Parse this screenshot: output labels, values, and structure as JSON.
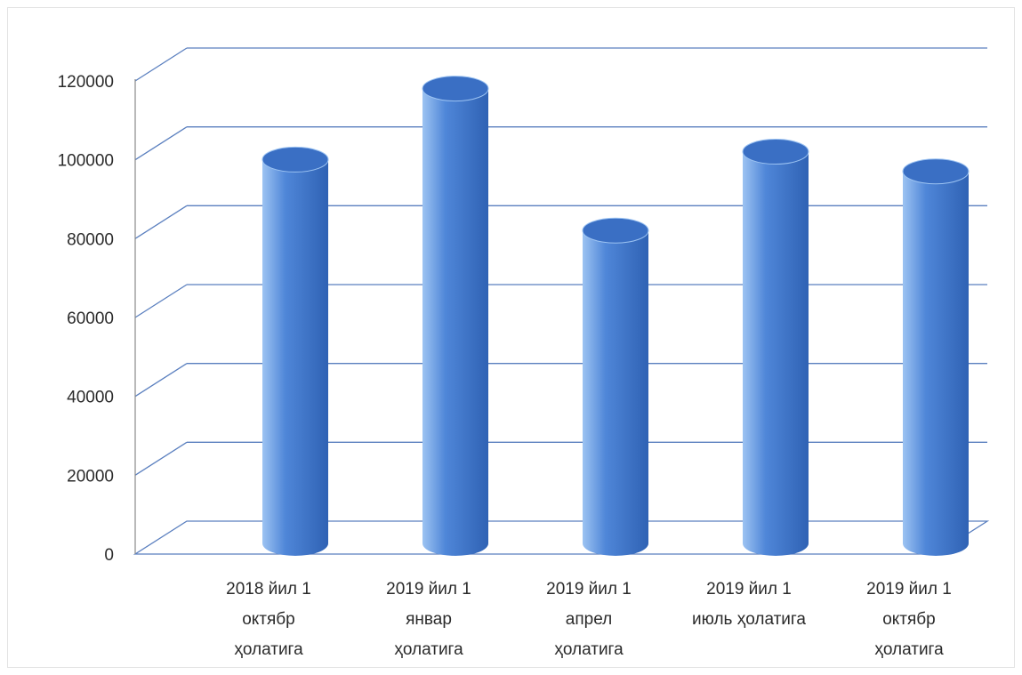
{
  "chart_data": {
    "type": "bar",
    "style": "3d-cylinder",
    "categories": [
      [
        "2018 йил 1",
        "октябр",
        "ҳолатига"
      ],
      [
        "2019 йил 1",
        "январ",
        "ҳолатига"
      ],
      [
        "2019 йил 1",
        "апрел",
        "ҳолатига"
      ],
      [
        "2019 йил 1",
        "июль ҳолатига"
      ],
      [
        "2019 йил 1",
        "октябр",
        "ҳолатига"
      ]
    ],
    "values": [
      96000,
      114000,
      78000,
      98000,
      93000
    ],
    "yticks": [
      0,
      20000,
      40000,
      60000,
      80000,
      100000,
      120000
    ],
    "ylim": [
      0,
      120000
    ],
    "grid": true,
    "legend": false,
    "colors": {
      "bar_body": "#4f86d8",
      "bar_light": "#9cc3f2",
      "bar_dark": "#2f62b4",
      "bar_top": "#3a6fc4",
      "grid": "#5a7fbf",
      "axis": "#8a8a8a"
    }
  }
}
